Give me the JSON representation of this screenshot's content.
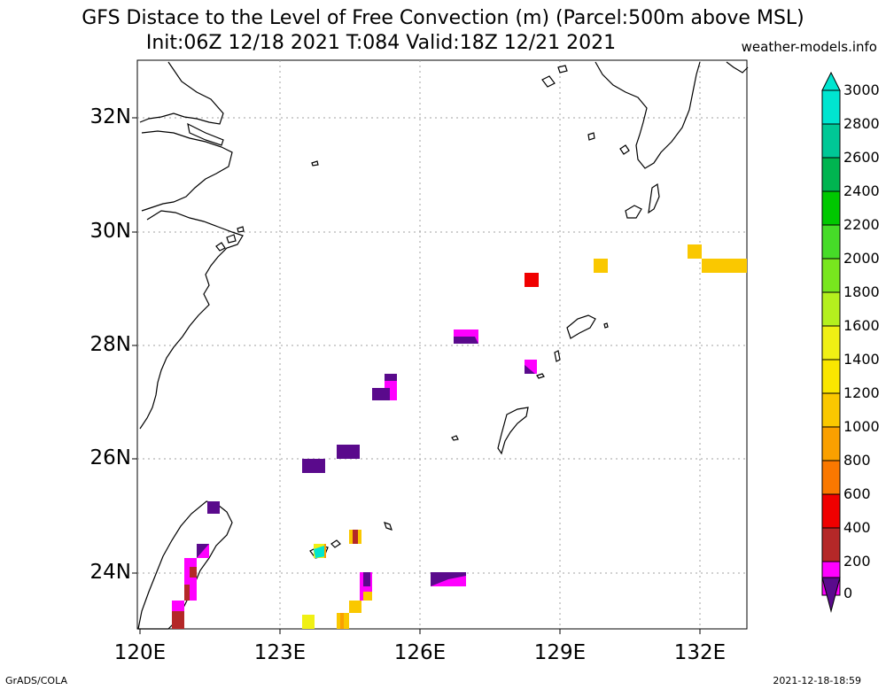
{
  "header": {
    "title_line1": "GFS Distace to the Level of Free Convection (m) (Parcel:500m above MSL)",
    "title_line2": "Init:06Z 12/18 2021 T:084 Valid:18Z 12/21 2021",
    "site": "weather-models.info"
  },
  "footer": {
    "left": "GrADS/COLA",
    "right": "2021-12-18-18:59"
  },
  "map": {
    "lon_range": [
      120,
      133.3
    ],
    "lat_range": [
      23,
      33
    ],
    "lat_labels": [
      "24N",
      "26N",
      "28N",
      "30N",
      "32N"
    ],
    "lon_labels": [
      "120E",
      "123E",
      "126E",
      "129E",
      "132E"
    ],
    "gridlines": "dotted",
    "colors": {
      "coast": "#000000",
      "grid": "#a0a0a0"
    }
  },
  "colorbar": {
    "labels": [
      "3000",
      "2800",
      "2600",
      "2400",
      "2200",
      "2000",
      "1800",
      "1600",
      "1400",
      "1200",
      "1000",
      "800",
      "600",
      "400",
      "200",
      "0"
    ],
    "colors": [
      "#00e5d0",
      "#00c896",
      "#00b450",
      "#00c800",
      "#1ed21e",
      "#46dc28",
      "#78e61e",
      "#b4f01e",
      "#f0f014",
      "#fae600",
      "#fac800",
      "#faa000",
      "#fa7800",
      "#f00000",
      "#b42828",
      "#ff00ff",
      "#5a0a8c"
    ]
  }
}
